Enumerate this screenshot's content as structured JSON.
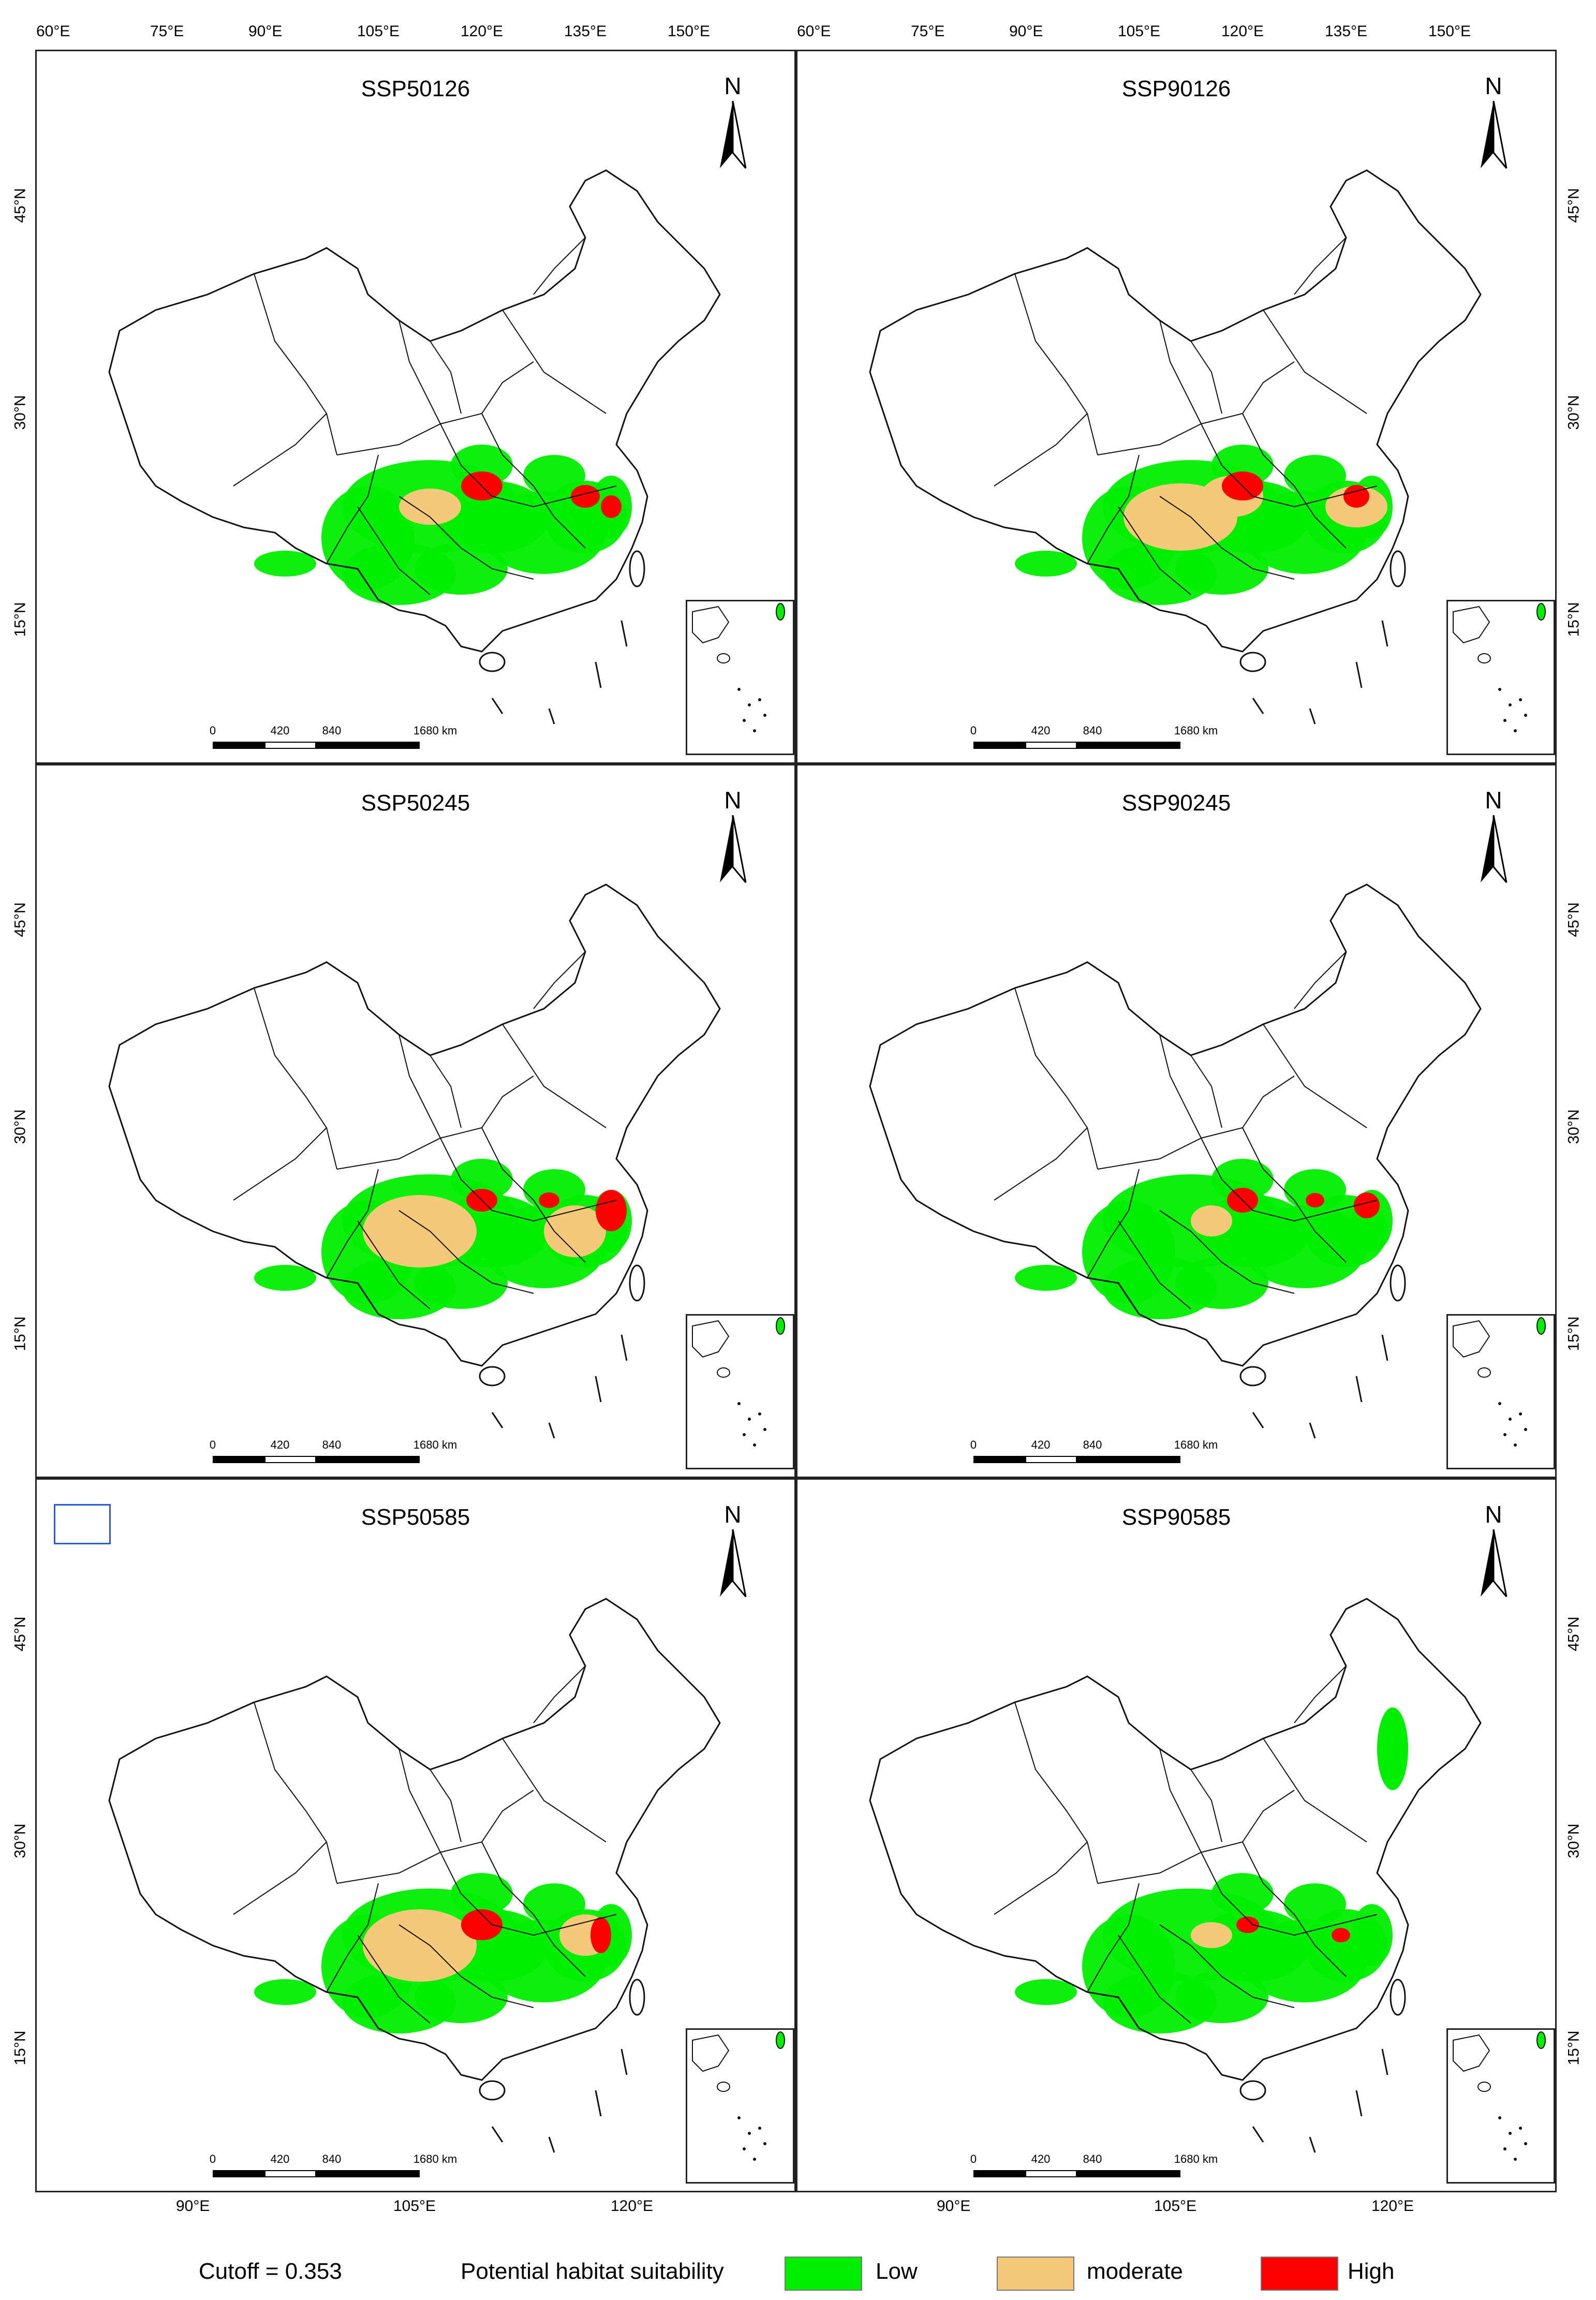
{
  "top_lon_labels": [
    "60°E",
    "75°E",
    "90°E",
    "105°E",
    "120°E",
    "135°E",
    "150°E"
  ],
  "bottom_lon_labels": [
    "90°E",
    "105°E",
    "120°E"
  ],
  "lat_labels": [
    "45°N",
    "30°N",
    "15°N"
  ],
  "panels": [
    {
      "title": "SSP50126",
      "north": "N",
      "scale": [
        "0",
        "420",
        "840",
        "1680 km"
      ],
      "suitability": {
        "low": "widespread",
        "moderate": "light",
        "high": "central hotspot"
      }
    },
    {
      "title": "SSP90126",
      "north": "N",
      "scale": [
        "0",
        "420",
        "840",
        "1680 km"
      ],
      "suitability": {
        "low": "widespread",
        "moderate": "extensive",
        "high": "central hotspot"
      }
    },
    {
      "title": "SSP50245",
      "north": "N",
      "scale": [
        "0",
        "420",
        "840",
        "1680 km"
      ],
      "suitability": {
        "low": "widespread",
        "moderate": "extensive",
        "high": "central and eastern"
      }
    },
    {
      "title": "SSP90245",
      "north": "N",
      "scale": [
        "0",
        "420",
        "840",
        "1680 km"
      ],
      "suitability": {
        "low": "widespread",
        "moderate": "light",
        "high": "central and eastern"
      }
    },
    {
      "title": "SSP50585",
      "north": "N",
      "scale": [
        "0",
        "420",
        "840",
        "1680 km"
      ],
      "suitability": {
        "low": "widespread",
        "moderate": "extensive",
        "high": "central hotspot"
      }
    },
    {
      "title": "SSP90585",
      "north": "N",
      "scale": [
        "0",
        "420",
        "840",
        "1680 km"
      ],
      "suitability": {
        "low": "widespread incl. northeast coast",
        "moderate": "light",
        "high": "scattered"
      }
    }
  ],
  "legend": {
    "cutoff": "Cutoff = 0.353",
    "title": "Potential habitat suitability",
    "classes": [
      {
        "label": "Low",
        "color": "#00ee00"
      },
      {
        "label": "moderate",
        "color": "#f5c97a"
      },
      {
        "label": "High",
        "color": "#ff0000"
      }
    ]
  },
  "colors": {
    "border": "#222222",
    "low": "#00ee00",
    "moderate": "#f5c97a",
    "high": "#ff0000",
    "highlight_box": "#2a5bd7"
  }
}
